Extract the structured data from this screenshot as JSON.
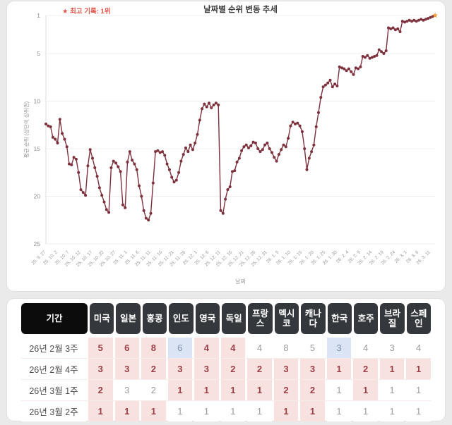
{
  "chart_data": {
    "type": "line",
    "title": "날짜별 순위 변동 추세",
    "annotation": "★ 최고 기록: 1위",
    "xlabel": "날짜",
    "ylabel": "평균 순위 (상단이 상위권)",
    "y_ticks": [
      1,
      5,
      10,
      15,
      20,
      25
    ],
    "y_axis_inverted": true,
    "ylim": [
      1,
      25
    ],
    "grid": "horizontal",
    "legend": "none",
    "x_tick_labels": [
      "25. 9. 27",
      "25. 10. 2",
      "25. 10. 7",
      "25. 10. 12",
      "25. 10. 17",
      "25. 10. 22",
      "25. 10. 27",
      "25. 11. 1",
      "25. 11. 6",
      "25. 11. 11",
      "25. 11. 16",
      "25. 11. 21",
      "25. 11. 26",
      "25. 12. 1",
      "25. 12. 6",
      "25. 12. 11",
      "25. 12. 16",
      "25. 12. 21",
      "25. 12. 26",
      "25. 12. 31",
      "26. 1. 5",
      "26. 1. 10",
      "26. 1. 15",
      "26. 1. 20",
      "26. 1. 25",
      "26. 1. 30",
      "26. 2. 4",
      "26. 2. 9",
      "26. 2. 14",
      "26. 2. 19",
      "26. 2. 24",
      "26. 3. 1",
      "26. 3. 6",
      "26. 3. 11"
    ],
    "points_per_tick": 5,
    "values": [
      12.4,
      12.6,
      12.7,
      13.8,
      14.0,
      14.4,
      11.9,
      13.4,
      14.0,
      14.8,
      16.6,
      16.7,
      15.9,
      16.1,
      17.5,
      19.3,
      19.6,
      19.9,
      16.8,
      15.1,
      16.0,
      17.0,
      17.9,
      19.1,
      19.9,
      20.6,
      21.4,
      21.7,
      17.0,
      16.3,
      16.5,
      16.9,
      17.4,
      20.9,
      21.2,
      16.4,
      15.3,
      16.2,
      16.6,
      17.2,
      18.9,
      20.0,
      21.5,
      22.3,
      22.5,
      21.8,
      18.6,
      15.3,
      15.2,
      15.4,
      15.3,
      15.7,
      16.6,
      17.2,
      18.0,
      18.5,
      18.3,
      17.5,
      16.3,
      15.6,
      14.9,
      15.3,
      14.6,
      15.1,
      14.4,
      13.5,
      12.0,
      10.8,
      10.3,
      10.6,
      10.2,
      10.7,
      10.4,
      10.2,
      10.4,
      21.5,
      21.8,
      20.3,
      19.3,
      19.0,
      17.4,
      17.3,
      16.4,
      16.0,
      15.2,
      14.8,
      14.6,
      14.9,
      14.7,
      14.3,
      14.4,
      15.0,
      15.3,
      15.1,
      14.6,
      14.4,
      15.0,
      15.4,
      15.9,
      16.3,
      15.6,
      15.1,
      14.6,
      14.8,
      13.9,
      12.6,
      12.2,
      12.4,
      12.3,
      12.6,
      13.2,
      15.0,
      17.2,
      16.0,
      15.3,
      14.6,
      12.7,
      11.2,
      9.6,
      8.5,
      8.3,
      8.1,
      7.8,
      8.5,
      8.2,
      8.4,
      6.4,
      6.5,
      6.6,
      6.8,
      6.6,
      6.9,
      7.2,
      6.5,
      6.6,
      6.4,
      5.3,
      5.4,
      5.2,
      5.5,
      5.4,
      5.3,
      5.2,
      4.6,
      4.8,
      5.0,
      4.7,
      2.3,
      2.4,
      2.3,
      2.5,
      2.4,
      2.7,
      1.6,
      1.7,
      1.6,
      1.5,
      1.6,
      1.5,
      1.6,
      1.5,
      1.4,
      1.5,
      1.4,
      1.3,
      1.2,
      1.1,
      1.0
    ],
    "highlight_last_point": "orange-star",
    "colors": {
      "line": "#7c313d",
      "marker": "#7c313d",
      "star": "#f1a23c",
      "annotation": "#e0544a",
      "grid": "#efefef",
      "axis": "#dcdcdc",
      "tick_text": "#999999",
      "title_text": "#3c3c3c"
    }
  },
  "table": {
    "columns": [
      "기간",
      "미국",
      "일본",
      "홍콩",
      "인도",
      "영국",
      "독일",
      "프랑스",
      "멕시코",
      "캐나다",
      "한국",
      "호주",
      "브라질",
      "스페인"
    ],
    "rows": [
      {
        "period": "26년 2월 3주",
        "cells": [
          {
            "v": "5",
            "bg": "pink"
          },
          {
            "v": "6",
            "bg": "pink"
          },
          {
            "v": "8",
            "bg": "pink"
          },
          {
            "v": "6",
            "bg": "blue"
          },
          {
            "v": "4",
            "bg": "pink"
          },
          {
            "v": "4",
            "bg": "pink"
          },
          {
            "v": "4",
            "bg": "white"
          },
          {
            "v": "8",
            "bg": "white"
          },
          {
            "v": "5",
            "bg": "white"
          },
          {
            "v": "3",
            "bg": "blue"
          },
          {
            "v": "4",
            "bg": "white"
          },
          {
            "v": "3",
            "bg": "white"
          },
          {
            "v": "4",
            "bg": "white"
          }
        ]
      },
      {
        "period": "26년 2월 4주",
        "cells": [
          {
            "v": "3",
            "bg": "pink"
          },
          {
            "v": "3",
            "bg": "pink"
          },
          {
            "v": "2",
            "bg": "pink"
          },
          {
            "v": "3",
            "bg": "pink"
          },
          {
            "v": "3",
            "bg": "pink"
          },
          {
            "v": "2",
            "bg": "pink"
          },
          {
            "v": "2",
            "bg": "pink"
          },
          {
            "v": "3",
            "bg": "pink"
          },
          {
            "v": "3",
            "bg": "pink"
          },
          {
            "v": "1",
            "bg": "pink"
          },
          {
            "v": "2",
            "bg": "pink"
          },
          {
            "v": "1",
            "bg": "pink"
          },
          {
            "v": "1",
            "bg": "pink"
          }
        ]
      },
      {
        "period": "26년 3월 1주",
        "cells": [
          {
            "v": "2",
            "bg": "pink"
          },
          {
            "v": "3",
            "bg": "white"
          },
          {
            "v": "2",
            "bg": "white"
          },
          {
            "v": "1",
            "bg": "pink"
          },
          {
            "v": "1",
            "bg": "pink"
          },
          {
            "v": "1",
            "bg": "pink"
          },
          {
            "v": "1",
            "bg": "pink"
          },
          {
            "v": "2",
            "bg": "pink"
          },
          {
            "v": "2",
            "bg": "pink"
          },
          {
            "v": "1",
            "bg": "white"
          },
          {
            "v": "1",
            "bg": "pink"
          },
          {
            "v": "1",
            "bg": "white"
          },
          {
            "v": "1",
            "bg": "white"
          }
        ]
      },
      {
        "period": "26년 3월 2주",
        "cells": [
          {
            "v": "1",
            "bg": "pink"
          },
          {
            "v": "1",
            "bg": "pink"
          },
          {
            "v": "1",
            "bg": "pink"
          },
          {
            "v": "1",
            "bg": "white"
          },
          {
            "v": "1",
            "bg": "white"
          },
          {
            "v": "1",
            "bg": "white"
          },
          {
            "v": "1",
            "bg": "white"
          },
          {
            "v": "1",
            "bg": "pink"
          },
          {
            "v": "1",
            "bg": "pink"
          },
          {
            "v": "1",
            "bg": "white"
          },
          {
            "v": "1",
            "bg": "white"
          },
          {
            "v": "1",
            "bg": "white"
          },
          {
            "v": "1",
            "bg": "white"
          }
        ]
      }
    ],
    "cell_bg_colors": {
      "pink": "#f8e2e0",
      "white": "#ffffff",
      "blue": "#dae4f4"
    },
    "cell_text_colors": {
      "pink": "#9a3e47",
      "white": "#9b9b9b",
      "blue": "#8090aa"
    },
    "header_bg": {
      "period": "#0c0c0c",
      "country": "#34383c"
    }
  }
}
